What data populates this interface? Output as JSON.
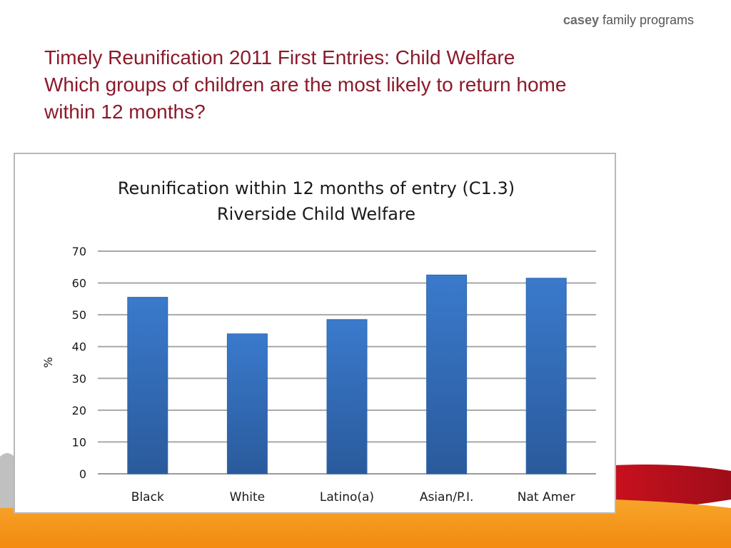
{
  "logo": {
    "brand": "casey",
    "rest": " family programs"
  },
  "slide": {
    "title_lines": [
      "Timely Reunification 2011 First Entries: Child Welfare",
      "Which groups of children are the most likely to return home",
      "within 12 months?"
    ]
  },
  "colors": {
    "title": "#8b1a2b",
    "bar_top": "#3a7acc",
    "bar_bottom": "#2a5a9c",
    "accent_red": "#b3101e",
    "accent_orange": "#f59a1c"
  },
  "chart_data": {
    "type": "bar",
    "title": "Reunification within 12 months of entry (C1.3)",
    "subtitle": "Riverside Child Welfare",
    "ylabel": "%",
    "xlabel": "",
    "ylim": [
      0,
      70
    ],
    "yticks": [
      0,
      10,
      20,
      30,
      40,
      50,
      60,
      70
    ],
    "grid": true,
    "categories": [
      "Black",
      "White",
      "Latino(a)",
      "Asian/P.I.",
      "Nat Amer"
    ],
    "values": [
      55.5,
      44,
      48.5,
      62.5,
      61.5
    ]
  }
}
